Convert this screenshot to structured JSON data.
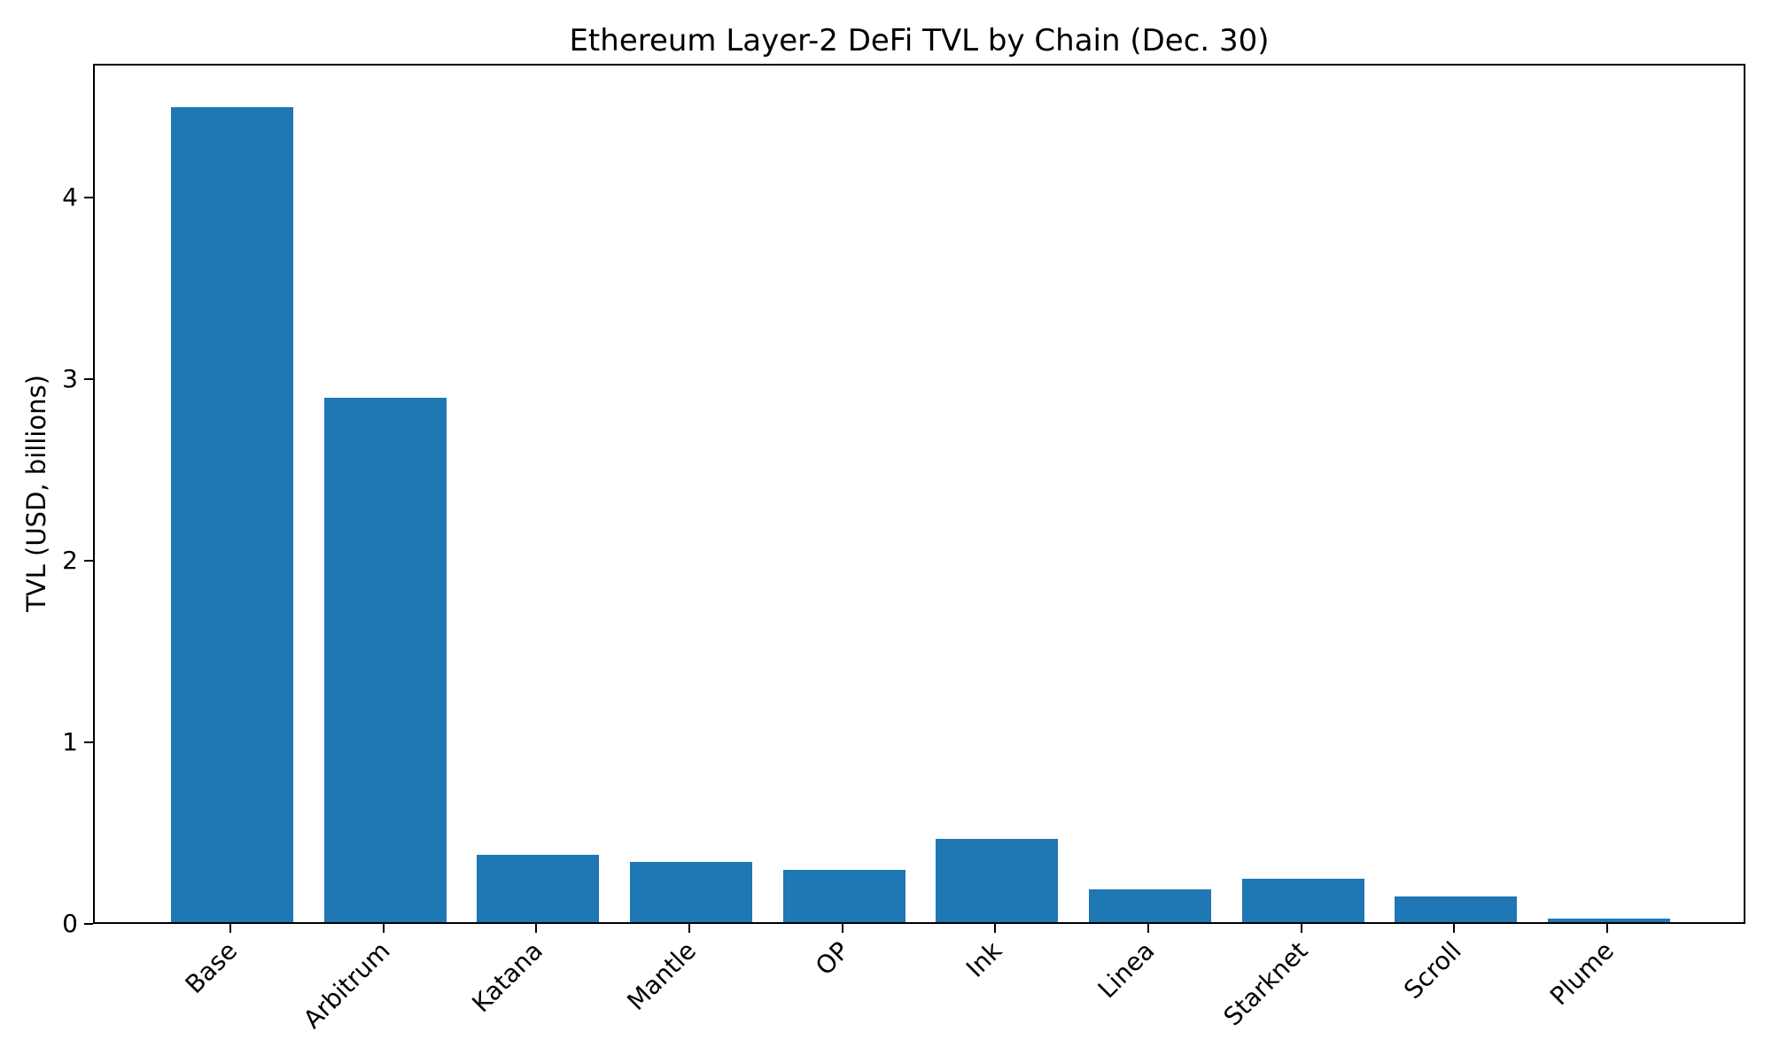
{
  "chart_data": {
    "type": "bar",
    "title": "Ethereum Layer-2 DeFi TVL by Chain (Dec. 30)",
    "xlabel": "",
    "ylabel": "TVL (USD, billions)",
    "categories": [
      "Base",
      "Arbitrum",
      "Katana",
      "Mantle",
      "OP",
      "Ink",
      "Linea",
      "Starknet",
      "Scroll",
      "Plume"
    ],
    "values": [
      4.49,
      2.89,
      0.37,
      0.33,
      0.29,
      0.46,
      0.18,
      0.24,
      0.14,
      0.02
    ],
    "yticks": [
      0,
      1,
      2,
      3,
      4
    ],
    "ylim": [
      0,
      4.737
    ],
    "x_tick_label_rotation_deg": 45,
    "grid": false,
    "legend": "none",
    "bar_color": "#1f77b4",
    "axis_color": "#000000",
    "background_color": "#ffffff"
  }
}
